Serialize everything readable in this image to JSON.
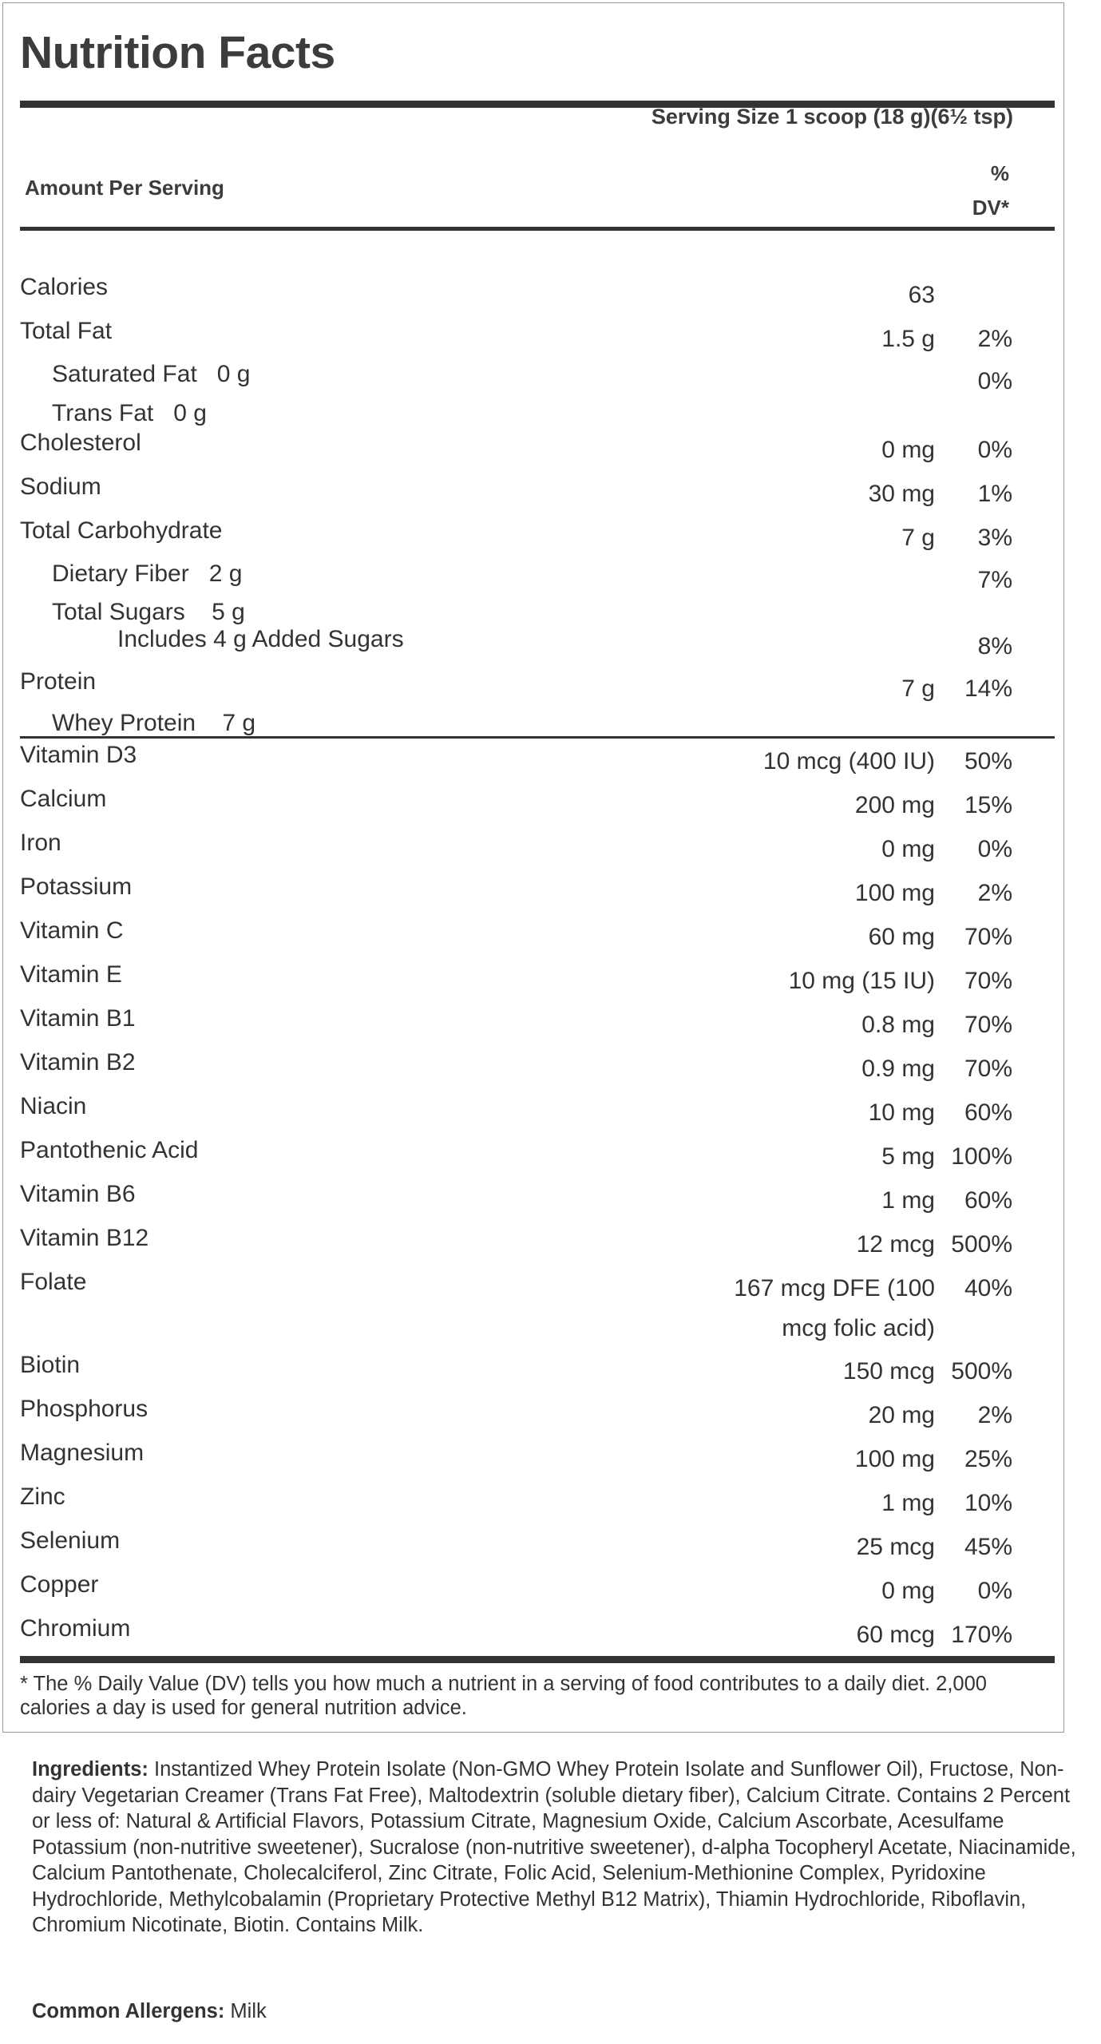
{
  "label": {
    "title": "Nutrition Facts",
    "serving_size": "Serving Size 1 scoop (18 g)(6½ tsp)",
    "amount_per_serving": "Amount Per Serving",
    "dv_header_line1": "%",
    "dv_header_line2": "DV*"
  },
  "nutrients": [
    {
      "name": "Calories",
      "amount": "63",
      "dv": ""
    },
    {
      "name": "Total Fat",
      "amount": "1.5 g",
      "dv": "2%"
    },
    {
      "name": "Saturated Fat   0 g",
      "amount": "",
      "dv": "0%"
    },
    {
      "name": "Trans Fat   0 g",
      "amount": "",
      "dv": ""
    },
    {
      "name": "Cholesterol",
      "amount": "0 mg",
      "dv": "0%"
    },
    {
      "name": "Sodium",
      "amount": "30 mg",
      "dv": "1%"
    },
    {
      "name": "Total Carbohydrate",
      "amount": "7 g",
      "dv": "3%"
    },
    {
      "name": "Dietary Fiber   2 g",
      "amount": "",
      "dv": "7%"
    },
    {
      "name": "Total Sugars    5 g",
      "amount": "",
      "dv": ""
    },
    {
      "name": "Includes 4 g Added Sugars",
      "amount": "",
      "dv": "8%"
    },
    {
      "name": "Protein",
      "amount": "7 g",
      "dv": "14%"
    },
    {
      "name": "Whey Protein    7 g",
      "amount": "",
      "dv": ""
    }
  ],
  "micronutrients": [
    {
      "name": "Vitamin D3",
      "amount": "10 mcg (400 IU)",
      "dv": "50%"
    },
    {
      "name": "Calcium",
      "amount": "200 mg",
      "dv": "15%"
    },
    {
      "name": "Iron",
      "amount": "0 mg",
      "dv": "0%"
    },
    {
      "name": "Potassium",
      "amount": "100 mg",
      "dv": "2%"
    },
    {
      "name": "Vitamin C",
      "amount": "60 mg",
      "dv": "70%"
    },
    {
      "name": "Vitamin E",
      "amount": "10 mg (15 IU)",
      "dv": "70%"
    },
    {
      "name": "Vitamin B1",
      "amount": "0.8 mg",
      "dv": "70%"
    },
    {
      "name": "Vitamin B2",
      "amount": "0.9 mg",
      "dv": "70%"
    },
    {
      "name": "Niacin",
      "amount": "10 mg",
      "dv": "60%"
    },
    {
      "name": "Pantothenic Acid",
      "amount": "5 mg",
      "dv": "100%"
    },
    {
      "name": "Vitamin B6",
      "amount": "1 mg",
      "dv": "60%"
    },
    {
      "name": "Vitamin B12",
      "amount": "12 mcg",
      "dv": "500%"
    },
    {
      "name": "Folate",
      "amount": "167 mcg DFE (100",
      "amount2": "mcg folic acid)",
      "dv": "40%"
    },
    {
      "name": "Biotin",
      "amount": "150 mcg",
      "dv": "500%"
    },
    {
      "name": "Phosphorus",
      "amount": "20 mg",
      "dv": "2%"
    },
    {
      "name": "Magnesium",
      "amount": "100 mg",
      "dv": "25%"
    },
    {
      "name": "Zinc",
      "amount": "1 mg",
      "dv": "10%"
    },
    {
      "name": "Selenium",
      "amount": "25 mcg",
      "dv": "45%"
    },
    {
      "name": "Copper",
      "amount": "0 mg",
      "dv": "0%"
    },
    {
      "name": "Chromium",
      "amount": "60 mcg",
      "dv": "170%"
    }
  ],
  "footnote": "* The % Daily Value (DV) tells you how much a nutrient in a serving of food contributes to a daily diet. 2,000 calories a day is used for general nutrition advice.",
  "ingredients": {
    "label": "Ingredients:",
    "text": " Instantized Whey Protein Isolate (Non-GMO Whey Protein Isolate and Sunflower Oil), Fructose, Non-dairy Vegetarian Creamer (Trans Fat Free), Maltodextrin (soluble dietary fiber), Calcium Citrate. Contains 2 Percent or less of: Natural & Artificial Flavors, Potassium Citrate, Magnesium Oxide, Calcium Ascorbate, Acesulfame Potassium (non-nutritive sweetener), Sucralose (non-nutritive sweetener), d-alpha Tocopheryl Acetate, Niacinamide, Calcium Pantothenate, Cholecalciferol, Zinc Citrate, Folic Acid, Selenium-Methionine Complex, Pyridoxine Hydrochloride, Methylcobalamin (Proprietary Protective Methyl B12 Matrix), Thiamin Hydrochloride, Riboflavin, Chromium Nicotinate, Biotin. Contains Milk."
  },
  "allergens": {
    "label": "Common Allergens:",
    "text": " Milk"
  }
}
